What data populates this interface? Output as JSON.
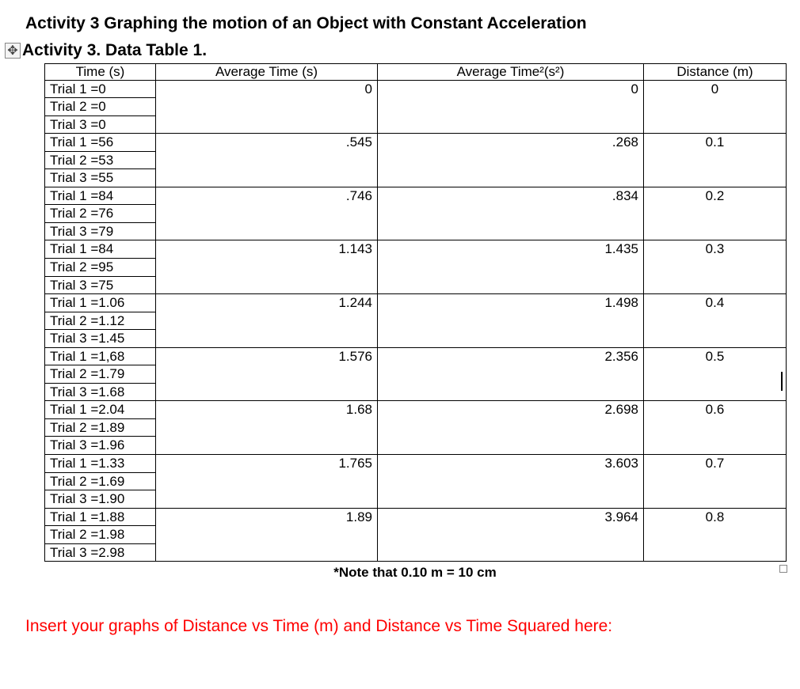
{
  "headings": {
    "title": "Activity 3 Graphing the motion of an Object with Constant Acceleration",
    "subtitle": "Activity 3. Data Table 1."
  },
  "table": {
    "headers": {
      "time": "Time (s)",
      "avg_time": "Average Time (s)",
      "avg_time2": "Average Time²(s²)",
      "distance": "Distance (m)"
    },
    "groups": [
      {
        "trials": [
          "Trial 1 =0",
          "Trial 2 =0",
          "Trial 3 =0"
        ],
        "avg_time": "0",
        "avg_time2": "0",
        "distance": "0"
      },
      {
        "trials": [
          "Trial 1 =56",
          "Trial 2 =53",
          "Trial 3 =55"
        ],
        "avg_time": ".545",
        "avg_time2": ".268",
        "distance": "0.1"
      },
      {
        "trials": [
          "Trial 1 =84",
          "Trial 2 =76",
          "Trial 3 =79"
        ],
        "avg_time": ".746",
        "avg_time2": ".834",
        "distance": "0.2"
      },
      {
        "trials": [
          "Trial 1 =84",
          "Trial 2 =95",
          "Trial 3 =75"
        ],
        "avg_time": "1.143",
        "avg_time2": "1.435",
        "distance": "0.3"
      },
      {
        "trials": [
          "Trial 1 =1.06",
          "Trial 2 =1.12",
          "Trial 3 =1.45"
        ],
        "avg_time": "1.244",
        "avg_time2": "1.498",
        "distance": "0.4"
      },
      {
        "trials": [
          "Trial 1 =1,68",
          "Trial 2 =1.79",
          "Trial 3 =1.68"
        ],
        "avg_time": "1.576",
        "avg_time2": "2.356",
        "distance": "0.5"
      },
      {
        "trials": [
          "Trial 1 =2.04",
          "Trial 2 =1.89",
          "Trial 3 =1.96"
        ],
        "avg_time": "1.68",
        "avg_time2": "2.698",
        "distance": "0.6"
      },
      {
        "trials": [
          "Trial 1 =1.33",
          "Trial 2 =1.69",
          "Trial 3 =1.90"
        ],
        "avg_time": "1.765",
        "avg_time2": "3.603",
        "distance": "0.7"
      },
      {
        "trials": [
          "Trial 1 =1.88",
          "Trial 2 =1.98",
          "Trial 3 =2.98"
        ],
        "avg_time": "1.89",
        "avg_time2": "3.964",
        "distance": "0.8"
      }
    ]
  },
  "note": "*Note that 0.10 m = 10 cm",
  "instruction": "Insert your graphs of Distance vs Time (m) and Distance vs Time Squared here:",
  "colors": {
    "instruction_color": "#ff0000",
    "text_color": "#000000",
    "background": "#ffffff",
    "border": "#000000"
  }
}
